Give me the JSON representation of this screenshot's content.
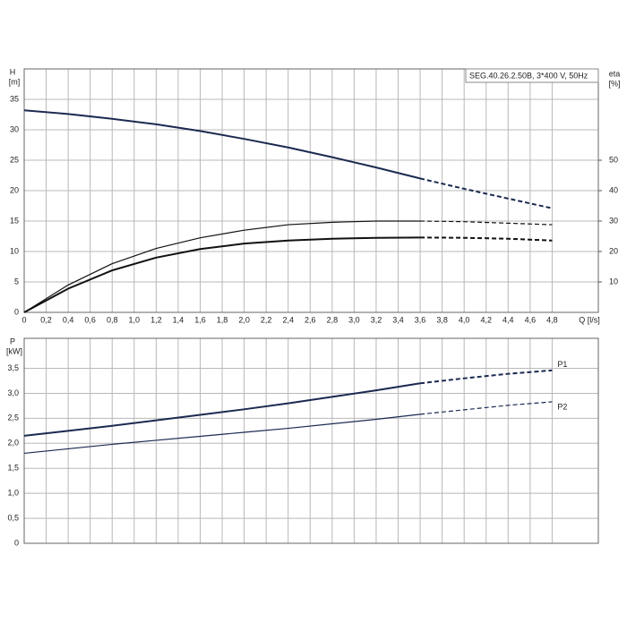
{
  "chart_data": [
    {
      "type": "line",
      "title": "SEG.40.26.2.50B, 3*400 V, 50Hz",
      "ylabel": "H",
      "yunit": "[m]",
      "y2label": "eta",
      "y2unit": "[%]",
      "xlabel": "Q [l/s]",
      "x": [
        0,
        0.4,
        0.8,
        1.2,
        1.6,
        2.0,
        2.4,
        2.8,
        3.2,
        3.6,
        4.0,
        4.4,
        4.8
      ],
      "xlim": [
        0,
        5.22
      ],
      "xticks": [
        0,
        {
          "value": 0.2,
          "label": "0,2"
        },
        {
          "value": 0.4,
          "label": "0,4"
        },
        {
          "value": 0.6,
          "label": "0,6"
        },
        {
          "value": 0.8,
          "label": "0,8"
        },
        {
          "value": 1.0,
          "label": "1,0"
        },
        {
          "value": 1.2,
          "label": "1,2"
        },
        {
          "value": 1.4,
          "label": "1,4"
        },
        {
          "value": 1.6,
          "label": "1,6"
        },
        {
          "value": 1.8,
          "label": "1,8"
        },
        {
          "value": 2.0,
          "label": "2,0"
        },
        {
          "value": 2.2,
          "label": "2,2"
        },
        {
          "value": 2.4,
          "label": "2,4"
        },
        {
          "value": 2.6,
          "label": "2,6"
        },
        {
          "value": 2.8,
          "label": "2,8"
        },
        {
          "value": 3.0,
          "label": "3,0"
        },
        {
          "value": 3.2,
          "label": "3,2"
        },
        {
          "value": 3.4,
          "label": "3,4"
        },
        {
          "value": 3.6,
          "label": "3,6"
        },
        {
          "value": 3.8,
          "label": "3,8"
        },
        {
          "value": 4.0,
          "label": "4,0"
        },
        {
          "value": 4.2,
          "label": "4,2"
        },
        {
          "value": 4.4,
          "label": "4,4"
        },
        {
          "value": 4.6,
          "label": "4,6"
        },
        {
          "value": 4.8,
          "label": "4,8"
        }
      ],
      "xtick_labels": true,
      "ylim": [
        0,
        40
      ],
      "yticks": [
        0,
        5,
        10,
        15,
        20,
        25,
        30,
        35
      ],
      "y2lim": [
        0,
        80
      ],
      "y2ticks": [
        10,
        20,
        30,
        40,
        50
      ],
      "grid": true,
      "dash_from_index": 9,
      "series": [
        {
          "color": "#1a2a50",
          "width": 2,
          "values": [
            33.2,
            32.6,
            31.8,
            30.9,
            29.8,
            28.5,
            27.1,
            25.5,
            23.8,
            22.0,
            20.3,
            18.7,
            17.1
          ]
        },
        {
          "color": "#111111",
          "width": 1.2,
          "axis": "y2",
          "values": [
            0,
            9,
            16,
            21,
            24.5,
            27,
            28.8,
            29.6,
            30,
            30,
            29.8,
            29.3,
            28.8
          ]
        },
        {
          "color": "#111111",
          "width": 2,
          "axis": "y2",
          "values": [
            0,
            7.8,
            13.8,
            18,
            20.8,
            22.6,
            23.6,
            24.2,
            24.5,
            24.6,
            24.5,
            24.2,
            23.6
          ]
        }
      ]
    },
    {
      "type": "line",
      "ylabel": "P",
      "yunit": "[kW]",
      "x": [
        0,
        0.4,
        0.8,
        1.2,
        1.6,
        2.0,
        2.4,
        2.8,
        3.2,
        3.6,
        4.0,
        4.4,
        4.8
      ],
      "xlim": [
        0,
        5.22
      ],
      "xticks": [
        0,
        0.2,
        0.4,
        0.6,
        0.8,
        1.0,
        1.2,
        1.4,
        1.6,
        1.8,
        2.0,
        2.2,
        2.4,
        2.6,
        2.8,
        3.0,
        3.2,
        3.4,
        3.6,
        3.8,
        4.0,
        4.2,
        4.4,
        4.6,
        4.8
      ],
      "xtick_labels": false,
      "ylim": [
        0,
        4.1
      ],
      "yticks": [
        0,
        {
          "value": 0.5,
          "label": "0,5"
        },
        {
          "value": 1.0,
          "label": "1,0"
        },
        {
          "value": 1.5,
          "label": "1,5"
        },
        {
          "value": 2.0,
          "label": "2,0"
        },
        {
          "value": 2.5,
          "label": "2,5"
        },
        {
          "value": 3.0,
          "label": "3,0"
        },
        {
          "value": 3.5,
          "label": "3,5"
        }
      ],
      "grid": true,
      "dash_from_index": 9,
      "series": [
        {
          "name": "P1",
          "color": "#1a2a50",
          "width": 2,
          "values": [
            2.15,
            2.25,
            2.35,
            2.46,
            2.57,
            2.68,
            2.8,
            2.93,
            3.06,
            3.2,
            3.3,
            3.39,
            3.46
          ]
        },
        {
          "name": "P2",
          "color": "#1a2a50",
          "width": 1.2,
          "values": [
            1.8,
            1.89,
            1.98,
            2.06,
            2.14,
            2.22,
            2.3,
            2.39,
            2.48,
            2.58,
            2.67,
            2.76,
            2.83
          ]
        }
      ]
    }
  ]
}
